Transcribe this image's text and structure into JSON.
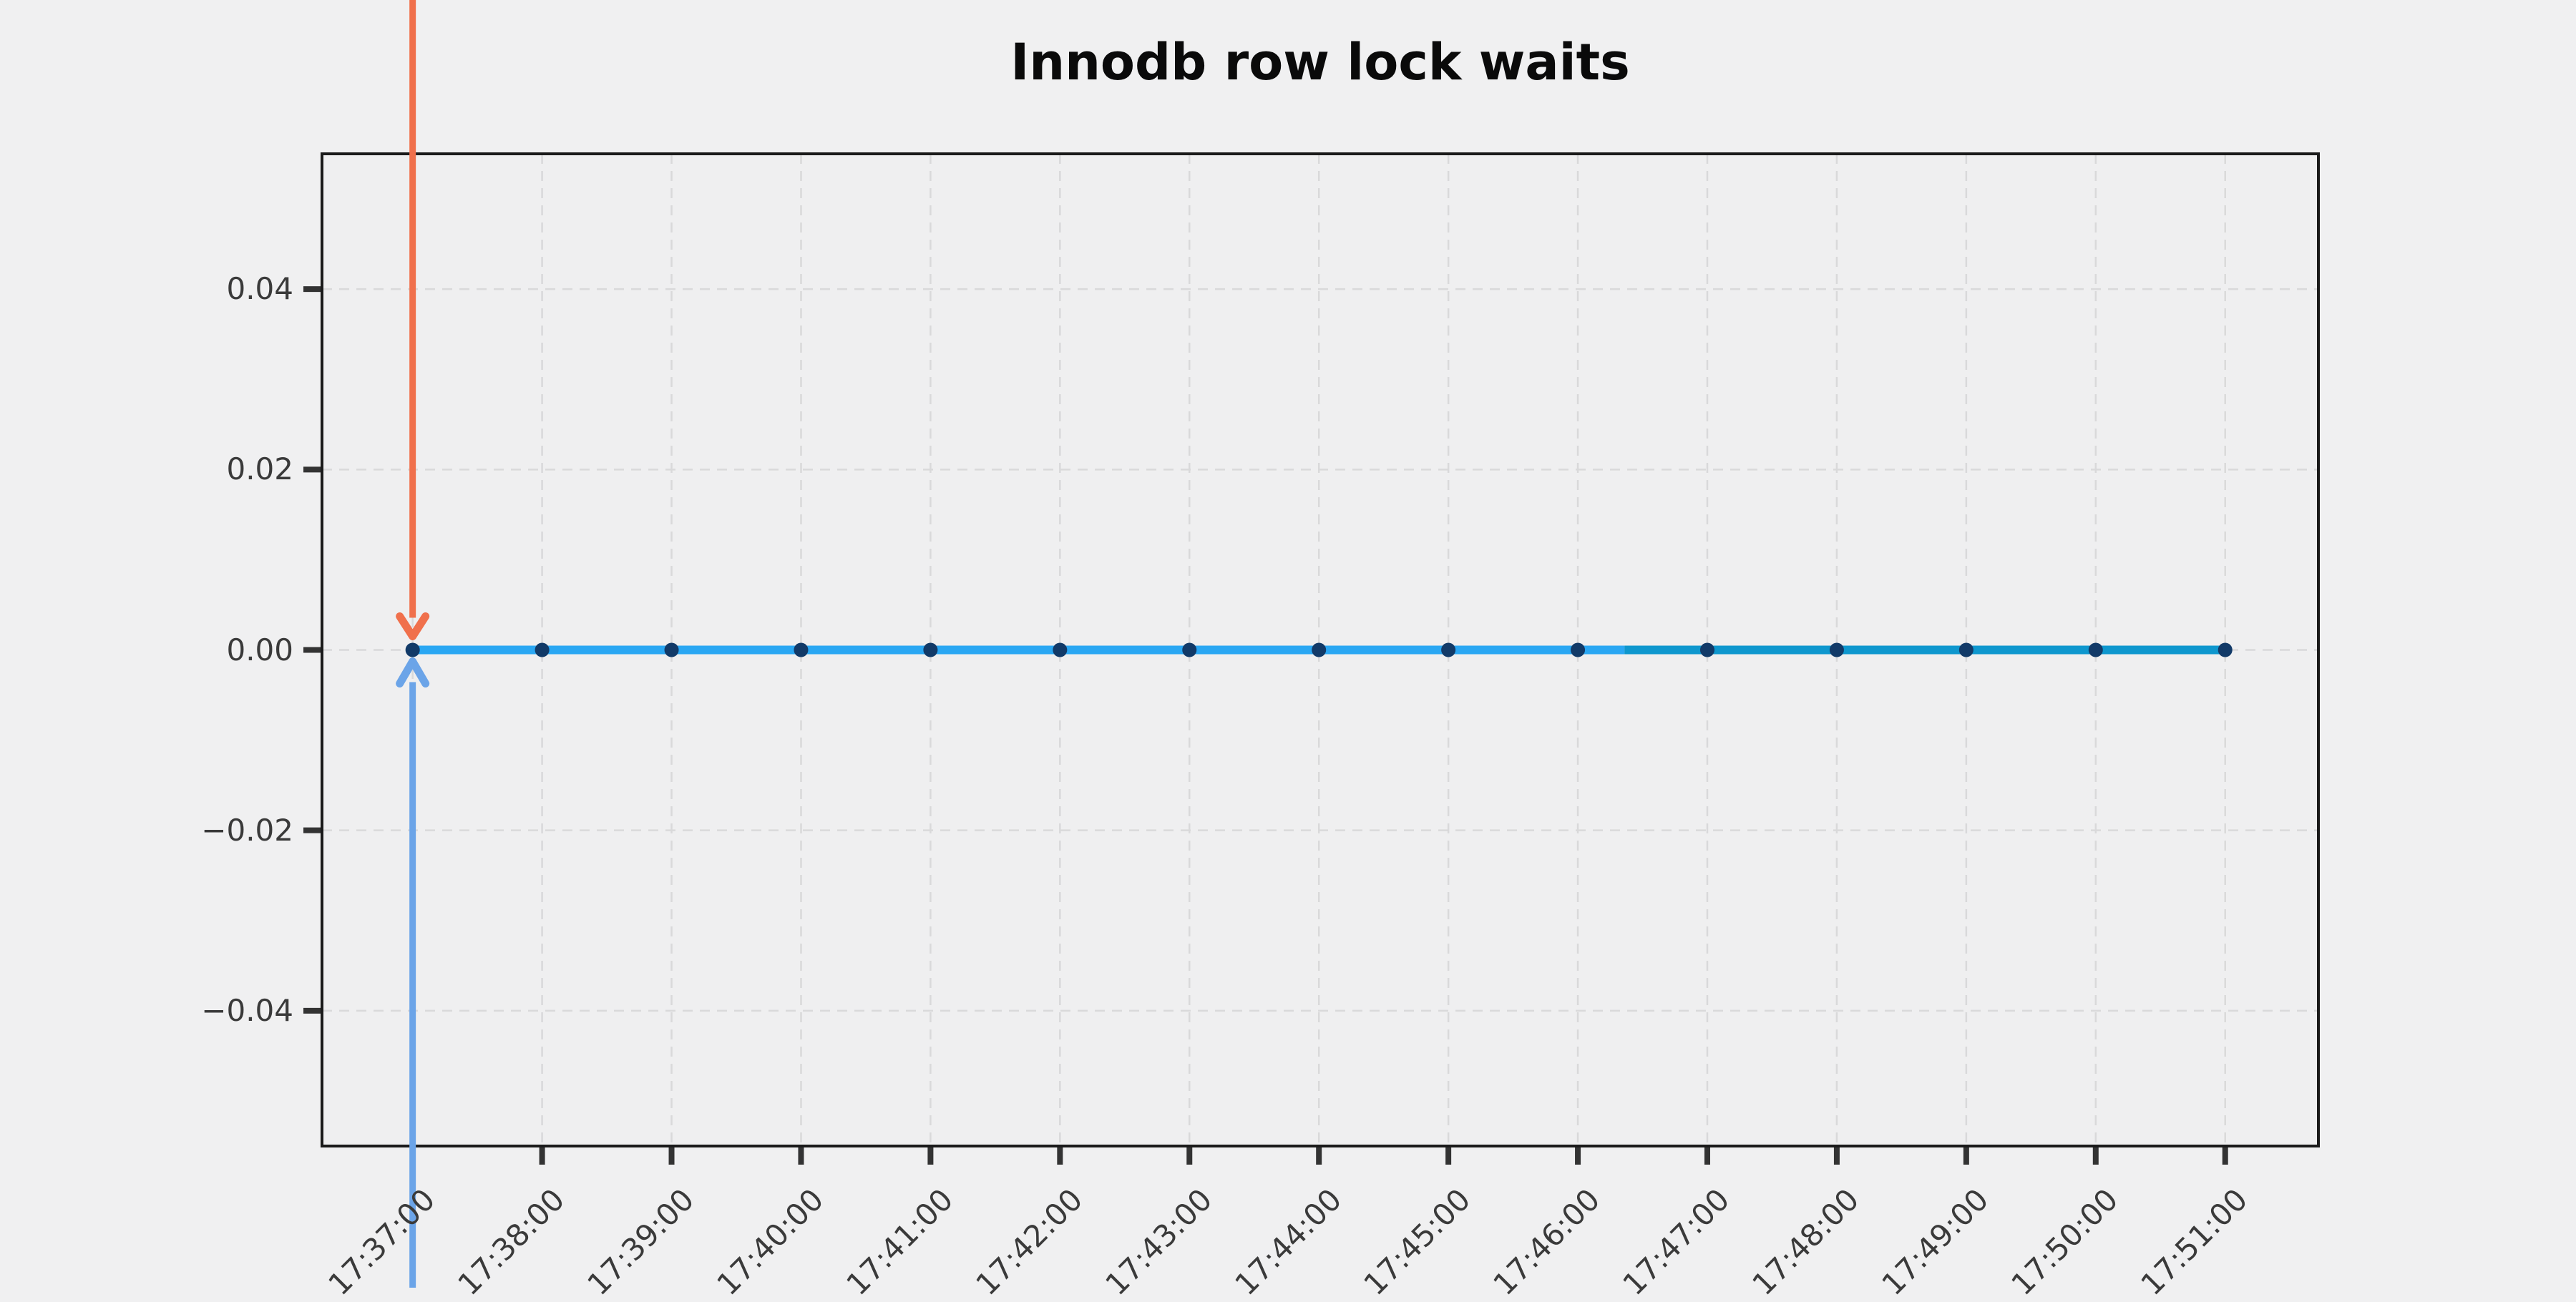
{
  "page": {
    "background_color": "#f0f0f1"
  },
  "chart_data": {
    "type": "line",
    "title": "Innodb row lock waits",
    "xlabel": "",
    "ylabel": "",
    "categories": [
      "17:37:00",
      "17:38:00",
      "17:39:00",
      "17:40:00",
      "17:41:00",
      "17:42:00",
      "17:43:00",
      "17:44:00",
      "17:45:00",
      "17:46:00",
      "17:47:00",
      "17:48:00",
      "17:49:00",
      "17:50:00",
      "17:51:00"
    ],
    "values": [
      0,
      0,
      0,
      0,
      0,
      0,
      0,
      0,
      0,
      0,
      0,
      0,
      0,
      0,
      0
    ],
    "yticks": [
      {
        "value": 0.04,
        "label": "0.04"
      },
      {
        "value": 0.02,
        "label": "0.02"
      },
      {
        "value": 0.0,
        "label": "0.00"
      },
      {
        "value": -0.02,
        "label": "−0.02"
      },
      {
        "value": -0.04,
        "label": "−0.04"
      }
    ],
    "ylim": [
      -0.055,
      0.055
    ],
    "x_index_range": [
      -0.7,
      14.72
    ],
    "grid": "dashed",
    "legend": "none",
    "marker_color": "#123a68",
    "segments": [
      {
        "name": "series-segment-light-blue",
        "from_index": 0,
        "to_index": 9.36,
        "color": "#2aa7f3"
      },
      {
        "name": "series-segment-teal",
        "from_index": 9.36,
        "to_index": 14,
        "color": "#0e97ce"
      }
    ],
    "annotations": [
      {
        "name": "orange-down-arrow",
        "direction": "down",
        "x_index": 0,
        "target_value": 0,
        "color": "#f0704c"
      },
      {
        "name": "blue-up-arrow",
        "direction": "up",
        "x_index": 0,
        "target_value": 0,
        "color": "#6ba4e8"
      }
    ]
  }
}
